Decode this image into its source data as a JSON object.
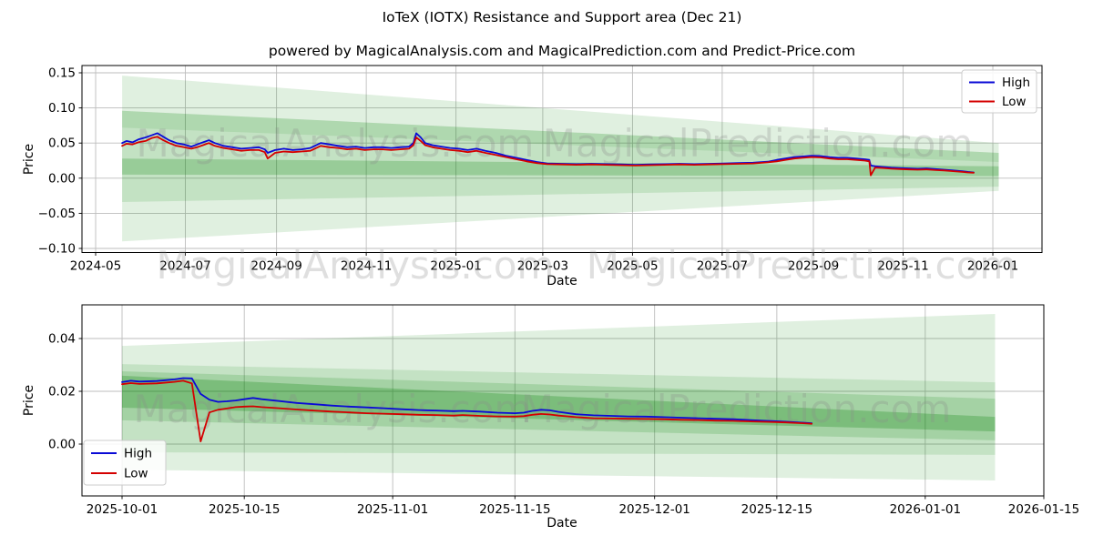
{
  "page": {
    "title": "IoTeX (IOTX) Resistance and Support area (Dec 21)",
    "subtitle": "powered by MagicalAnalysis.com and MagicalPrediction.com and Predict-Price.com"
  },
  "watermarks": {
    "left": "MagicalAnalysis.com",
    "right": "MagicalPrediction.com"
  },
  "colors": {
    "high": "#0a0ad6",
    "low": "#d40000",
    "band_green": "#008000",
    "grid": "#bdbdbd"
  },
  "chart_data": [
    {
      "type": "line",
      "name": "full-history",
      "xlabel": "Date",
      "ylabel": "Price",
      "grid": true,
      "xlim": [
        "2024-04-22",
        "2026-02-03"
      ],
      "ylim": [
        -0.106,
        0.16
      ],
      "x_tick_labels": [
        "2024-05",
        "2024-07",
        "2024-09",
        "2024-11",
        "2025-01",
        "2025-03",
        "2025-05",
        "2025-07",
        "2025-09",
        "2025-11",
        "2026-01"
      ],
      "x_tick_dates": [
        "2024-05-01",
        "2024-07-01",
        "2024-09-01",
        "2024-11-01",
        "2025-01-01",
        "2025-03-01",
        "2025-05-01",
        "2025-07-01",
        "2025-09-01",
        "2025-11-01",
        "2026-01-01"
      ],
      "y_tick_labels": [
        "0.15",
        "0.10",
        "0.05",
        "0.00",
        "−0.05",
        "−0.10"
      ],
      "y_tick_values": [
        0.15,
        0.1,
        0.05,
        0.0,
        -0.05,
        -0.1
      ],
      "legend": {
        "position": "upper right",
        "entries": [
          {
            "label": "High",
            "color": "#0a0ad6"
          },
          {
            "label": "Low",
            "color": "#d40000"
          }
        ]
      },
      "series": [
        {
          "name": "High",
          "color": "#0a0ad6",
          "value_index": 1
        },
        {
          "name": "Low",
          "color": "#d40000",
          "value_index": 2
        }
      ],
      "bands": [
        {
          "x0": "2024-05-19",
          "x1": "2026-01-05",
          "top0": 0.146,
          "bottom0": -0.09,
          "top1": 0.05,
          "bottom1": -0.018,
          "alpha": 0.12
        },
        {
          "x0": "2024-05-19",
          "x1": "2026-01-05",
          "top0": 0.096,
          "bottom0": -0.034,
          "top1": 0.036,
          "bottom1": -0.012,
          "alpha": 0.13
        },
        {
          "x0": "2024-05-19",
          "x1": "2026-01-05",
          "top0": 0.096,
          "bottom0": 0.072,
          "top1": 0.036,
          "bottom1": 0.023,
          "alpha": 0.1
        },
        {
          "x0": "2024-05-19",
          "x1": "2026-01-05",
          "top0": 0.028,
          "bottom0": 0.005,
          "top1": 0.017,
          "bottom1": 0.003,
          "alpha": 0.22
        }
      ],
      "points": [
        [
          "2024-05-19",
          0.05,
          0.046
        ],
        [
          "2024-05-22",
          0.053,
          0.049
        ],
        [
          "2024-05-26",
          0.051,
          0.048
        ],
        [
          "2024-05-30",
          0.055,
          0.051
        ],
        [
          "2024-06-04",
          0.058,
          0.053
        ],
        [
          "2024-06-08",
          0.061,
          0.057
        ],
        [
          "2024-06-12",
          0.064,
          0.059
        ],
        [
          "2024-06-16",
          0.059,
          0.054
        ],
        [
          "2024-06-20",
          0.054,
          0.05
        ],
        [
          "2024-06-25",
          0.05,
          0.046
        ],
        [
          "2024-06-30",
          0.048,
          0.044
        ],
        [
          "2024-07-05",
          0.045,
          0.042
        ],
        [
          "2024-07-09",
          0.048,
          0.044
        ],
        [
          "2024-07-13",
          0.051,
          0.047
        ],
        [
          "2024-07-17",
          0.054,
          0.05
        ],
        [
          "2024-07-21",
          0.05,
          0.046
        ],
        [
          "2024-07-27",
          0.046,
          0.043
        ],
        [
          "2024-08-02",
          0.044,
          0.041
        ],
        [
          "2024-08-08",
          0.042,
          0.039
        ],
        [
          "2024-08-14",
          0.043,
          0.04
        ],
        [
          "2024-08-20",
          0.044,
          0.04
        ],
        [
          "2024-08-24",
          0.041,
          0.037
        ],
        [
          "2024-08-26",
          0.036,
          0.028
        ],
        [
          "2024-08-31",
          0.04,
          0.036
        ],
        [
          "2024-09-06",
          0.042,
          0.038
        ],
        [
          "2024-09-12",
          0.04,
          0.037
        ],
        [
          "2024-09-18",
          0.041,
          0.038
        ],
        [
          "2024-09-24",
          0.043,
          0.039
        ],
        [
          "2024-10-01",
          0.05,
          0.046
        ],
        [
          "2024-10-07",
          0.048,
          0.044
        ],
        [
          "2024-10-13",
          0.046,
          0.043
        ],
        [
          "2024-10-19",
          0.044,
          0.041
        ],
        [
          "2024-10-25",
          0.045,
          0.042
        ],
        [
          "2024-10-31",
          0.043,
          0.04
        ],
        [
          "2024-11-06",
          0.044,
          0.041
        ],
        [
          "2024-11-12",
          0.044,
          0.041
        ],
        [
          "2024-11-18",
          0.043,
          0.04
        ],
        [
          "2024-11-24",
          0.044,
          0.041
        ],
        [
          "2024-11-30",
          0.045,
          0.042
        ],
        [
          "2024-12-03",
          0.05,
          0.047
        ],
        [
          "2024-12-05",
          0.064,
          0.058
        ],
        [
          "2024-12-08",
          0.058,
          0.053
        ],
        [
          "2024-12-11",
          0.05,
          0.047
        ],
        [
          "2024-12-16",
          0.047,
          0.044
        ],
        [
          "2024-12-22",
          0.045,
          0.042
        ],
        [
          "2024-12-28",
          0.043,
          0.04
        ],
        [
          "2025-01-03",
          0.042,
          0.039
        ],
        [
          "2025-01-09",
          0.04,
          0.037
        ],
        [
          "2025-01-15",
          0.042,
          0.039
        ],
        [
          "2025-01-21",
          0.039,
          0.036
        ],
        [
          "2025-01-28",
          0.036,
          0.033
        ],
        [
          "2025-02-04",
          0.032,
          0.03
        ],
        [
          "2025-02-11",
          0.029,
          0.027
        ],
        [
          "2025-02-18",
          0.026,
          0.024
        ],
        [
          "2025-02-25",
          0.023,
          0.0215
        ],
        [
          "2025-03-04",
          0.021,
          0.02
        ],
        [
          "2025-03-14",
          0.0205,
          0.0195
        ],
        [
          "2025-03-24",
          0.02,
          0.019
        ],
        [
          "2025-04-03",
          0.0205,
          0.0195
        ],
        [
          "2025-04-13",
          0.02,
          0.019
        ],
        [
          "2025-04-23",
          0.0195,
          0.0185
        ],
        [
          "2025-05-03",
          0.019,
          0.018
        ],
        [
          "2025-05-13",
          0.0195,
          0.0185
        ],
        [
          "2025-05-23",
          0.02,
          0.019
        ],
        [
          "2025-06-02",
          0.0205,
          0.0195
        ],
        [
          "2025-06-12",
          0.02,
          0.019
        ],
        [
          "2025-06-22",
          0.0205,
          0.0195
        ],
        [
          "2025-07-02",
          0.021,
          0.02
        ],
        [
          "2025-07-12",
          0.0215,
          0.0205
        ],
        [
          "2025-07-22",
          0.022,
          0.021
        ],
        [
          "2025-08-01",
          0.0235,
          0.0225
        ],
        [
          "2025-08-07",
          0.026,
          0.024
        ],
        [
          "2025-08-13",
          0.028,
          0.026
        ],
        [
          "2025-08-19",
          0.03,
          0.028
        ],
        [
          "2025-08-25",
          0.031,
          0.029
        ],
        [
          "2025-08-31",
          0.032,
          0.03
        ],
        [
          "2025-09-06",
          0.0315,
          0.0295
        ],
        [
          "2025-09-12",
          0.03,
          0.028
        ],
        [
          "2025-09-18",
          0.029,
          0.027
        ],
        [
          "2025-09-24",
          0.029,
          0.027
        ],
        [
          "2025-09-30",
          0.028,
          0.026
        ],
        [
          "2025-10-06",
          0.027,
          0.025
        ],
        [
          "2025-10-09",
          0.026,
          0.024
        ],
        [
          "2025-10-10",
          0.018,
          0.004
        ],
        [
          "2025-10-13",
          0.017,
          0.015
        ],
        [
          "2025-10-18",
          0.016,
          0.0145
        ],
        [
          "2025-10-24",
          0.015,
          0.0135
        ],
        [
          "2025-10-30",
          0.0145,
          0.013
        ],
        [
          "2025-11-05",
          0.014,
          0.0125
        ],
        [
          "2025-11-11",
          0.0135,
          0.012
        ],
        [
          "2025-11-17",
          0.014,
          0.0125
        ],
        [
          "2025-11-23",
          0.013,
          0.0115
        ],
        [
          "2025-11-29",
          0.012,
          0.011
        ],
        [
          "2025-12-05",
          0.011,
          0.01
        ],
        [
          "2025-12-11",
          0.01,
          0.009
        ],
        [
          "2025-12-15",
          0.009,
          0.0082
        ],
        [
          "2025-12-19",
          0.0082,
          0.0078
        ]
      ]
    },
    {
      "type": "line",
      "name": "recent-zoom",
      "xlabel": "Date",
      "ylabel": "Price",
      "grid": true,
      "xlim": [
        "2025-09-26",
        "2026-01-15"
      ],
      "ylim": [
        -0.0197,
        0.0528
      ],
      "x_tick_labels": [
        "2025-10-01",
        "2025-10-15",
        "2025-11-01",
        "2025-11-15",
        "2025-12-01",
        "2025-12-15",
        "2026-01-01",
        "2026-01-15"
      ],
      "x_tick_dates": [
        "2025-10-01",
        "2025-10-15",
        "2025-11-01",
        "2025-11-15",
        "2025-12-01",
        "2025-12-15",
        "2026-01-01",
        "2026-01-15"
      ],
      "y_tick_labels": [
        "0.04",
        "0.02",
        "0.00"
      ],
      "y_tick_values": [
        0.04,
        0.02,
        0.0
      ],
      "legend": {
        "position": "lower left",
        "entries": [
          {
            "label": "High",
            "color": "#0a0ad6"
          },
          {
            "label": "Low",
            "color": "#d40000"
          }
        ]
      },
      "series": [
        {
          "name": "High",
          "color": "#0a0ad6",
          "value_index": 1
        },
        {
          "name": "Low",
          "color": "#d40000",
          "value_index": 2
        }
      ],
      "bands": [
        {
          "x0": "2025-10-01",
          "x1": "2026-01-09",
          "top0": 0.0372,
          "bottom0": -0.0097,
          "top1": 0.0493,
          "bottom1": -0.0138,
          "alpha": 0.12
        },
        {
          "x0": "2025-10-01",
          "x1": "2026-01-09",
          "top0": 0.0303,
          "bottom0": -0.0031,
          "top1": 0.0234,
          "bottom1": -0.0041,
          "alpha": 0.12
        },
        {
          "x0": "2025-10-01",
          "x1": "2026-01-09",
          "top0": 0.0276,
          "bottom0": 0.009,
          "top1": 0.0172,
          "bottom1": 0.0014,
          "alpha": 0.16
        },
        {
          "x0": "2025-10-01",
          "x1": "2026-01-09",
          "top0": 0.0259,
          "bottom0": 0.0138,
          "top1": 0.0103,
          "bottom1": 0.0048,
          "alpha": 0.25
        }
      ],
      "points": [
        [
          "2025-10-01",
          0.0235,
          0.0227
        ],
        [
          "2025-10-02",
          0.024,
          0.0231
        ],
        [
          "2025-10-03",
          0.0237,
          0.0228
        ],
        [
          "2025-10-05",
          0.0239,
          0.023
        ],
        [
          "2025-10-07",
          0.0245,
          0.0236
        ],
        [
          "2025-10-08",
          0.025,
          0.024
        ],
        [
          "2025-10-09",
          0.0249,
          0.023
        ],
        [
          "2025-10-10",
          0.019,
          0.001
        ],
        [
          "2025-10-11",
          0.0168,
          0.012
        ],
        [
          "2025-10-12",
          0.016,
          0.013
        ],
        [
          "2025-10-13",
          0.0162,
          0.0135
        ],
        [
          "2025-10-14",
          0.0165,
          0.014
        ],
        [
          "2025-10-15",
          0.017,
          0.0142
        ],
        [
          "2025-10-16",
          0.0175,
          0.0143
        ],
        [
          "2025-10-17",
          0.017,
          0.014
        ],
        [
          "2025-10-19",
          0.0163,
          0.0136
        ],
        [
          "2025-10-21",
          0.0156,
          0.0131
        ],
        [
          "2025-10-23",
          0.0151,
          0.0127
        ],
        [
          "2025-10-25",
          0.0146,
          0.0123
        ],
        [
          "2025-10-27",
          0.0142,
          0.012
        ],
        [
          "2025-10-29",
          0.0139,
          0.0117
        ],
        [
          "2025-10-31",
          0.0136,
          0.0115
        ],
        [
          "2025-11-02",
          0.0132,
          0.0113
        ],
        [
          "2025-11-04",
          0.0129,
          0.0111
        ],
        [
          "2025-11-06",
          0.0127,
          0.011
        ],
        [
          "2025-11-08",
          0.0125,
          0.0108
        ],
        [
          "2025-11-09",
          0.0126,
          0.011
        ],
        [
          "2025-11-11",
          0.0123,
          0.0107
        ],
        [
          "2025-11-13",
          0.0119,
          0.0105
        ],
        [
          "2025-11-15",
          0.0117,
          0.0104
        ],
        [
          "2025-11-16",
          0.0119,
          0.0106
        ],
        [
          "2025-11-17",
          0.0126,
          0.0111
        ],
        [
          "2025-11-18",
          0.013,
          0.0114
        ],
        [
          "2025-11-19",
          0.0128,
          0.0112
        ],
        [
          "2025-11-20",
          0.0122,
          0.0108
        ],
        [
          "2025-11-22",
          0.0113,
          0.0102
        ],
        [
          "2025-11-24",
          0.0109,
          0.0098
        ],
        [
          "2025-11-26",
          0.0107,
          0.0097
        ],
        [
          "2025-11-28",
          0.0105,
          0.0096
        ],
        [
          "2025-11-30",
          0.0104,
          0.0095
        ],
        [
          "2025-12-02",
          0.0102,
          0.0094
        ],
        [
          "2025-12-04",
          0.01,
          0.0092
        ],
        [
          "2025-12-06",
          0.0098,
          0.0091
        ],
        [
          "2025-12-08",
          0.0096,
          0.0089
        ],
        [
          "2025-12-10",
          0.0094,
          0.0088
        ],
        [
          "2025-12-12",
          0.0091,
          0.0086
        ],
        [
          "2025-12-14",
          0.0088,
          0.0084
        ],
        [
          "2025-12-16",
          0.0085,
          0.0082
        ],
        [
          "2025-12-18",
          0.0081,
          0.0079
        ],
        [
          "2025-12-19",
          0.0079,
          0.0077
        ]
      ]
    }
  ]
}
